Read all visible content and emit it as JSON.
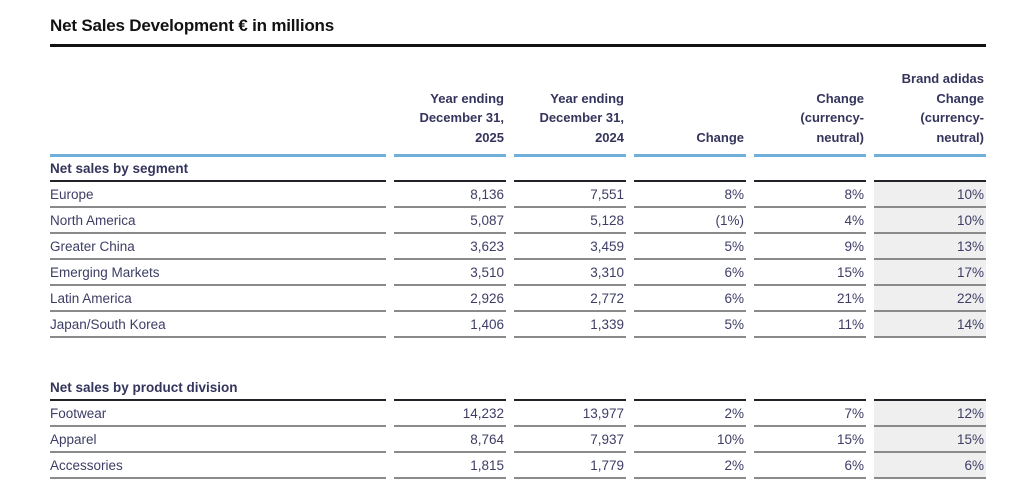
{
  "title": "Net Sales Development € in millions",
  "columns": [
    "Year ending\nDecember 31,\n2025",
    "Year ending\nDecember 31,\n2024",
    "Change",
    "Change\n(currency-\nneutral)",
    "Brand adidas\nChange\n(currency-\nneutral)"
  ],
  "sections": [
    {
      "heading": "Net sales by segment",
      "rows": [
        {
          "label": "Europe",
          "values": [
            "8,136",
            "7,551",
            "8%",
            "8%",
            "10%"
          ]
        },
        {
          "label": "North America",
          "values": [
            "5,087",
            "5,128",
            "(1%)",
            "4%",
            "10%"
          ]
        },
        {
          "label": "Greater China",
          "values": [
            "3,623",
            "3,459",
            "5%",
            "9%",
            "13%"
          ]
        },
        {
          "label": "Emerging Markets",
          "values": [
            "3,510",
            "3,310",
            "6%",
            "15%",
            "17%"
          ]
        },
        {
          "label": "Latin America",
          "values": [
            "2,926",
            "2,772",
            "6%",
            "21%",
            "22%"
          ]
        },
        {
          "label": "Japan/South Korea",
          "values": [
            "1,406",
            "1,339",
            "5%",
            "11%",
            "14%"
          ]
        }
      ]
    },
    {
      "heading": "Net sales by product division",
      "rows": [
        {
          "label": "Footwear",
          "values": [
            "14,232",
            "13,977",
            "2%",
            "7%",
            "12%"
          ]
        },
        {
          "label": "Apparel",
          "values": [
            "8,764",
            "7,937",
            "10%",
            "15%",
            "15%"
          ]
        },
        {
          "label": "Accessories",
          "values": [
            "1,815",
            "1,779",
            "2%",
            "6%",
            "6%"
          ]
        }
      ]
    }
  ],
  "colors": {
    "accent_blue": "#6fafd9",
    "header_text": "#34345c",
    "body_text": "#3d3d66",
    "rule_dark": "#222228",
    "rule_gray": "#8a8a8a",
    "shaded_bg": "#efefef",
    "title_color": "#121212"
  }
}
